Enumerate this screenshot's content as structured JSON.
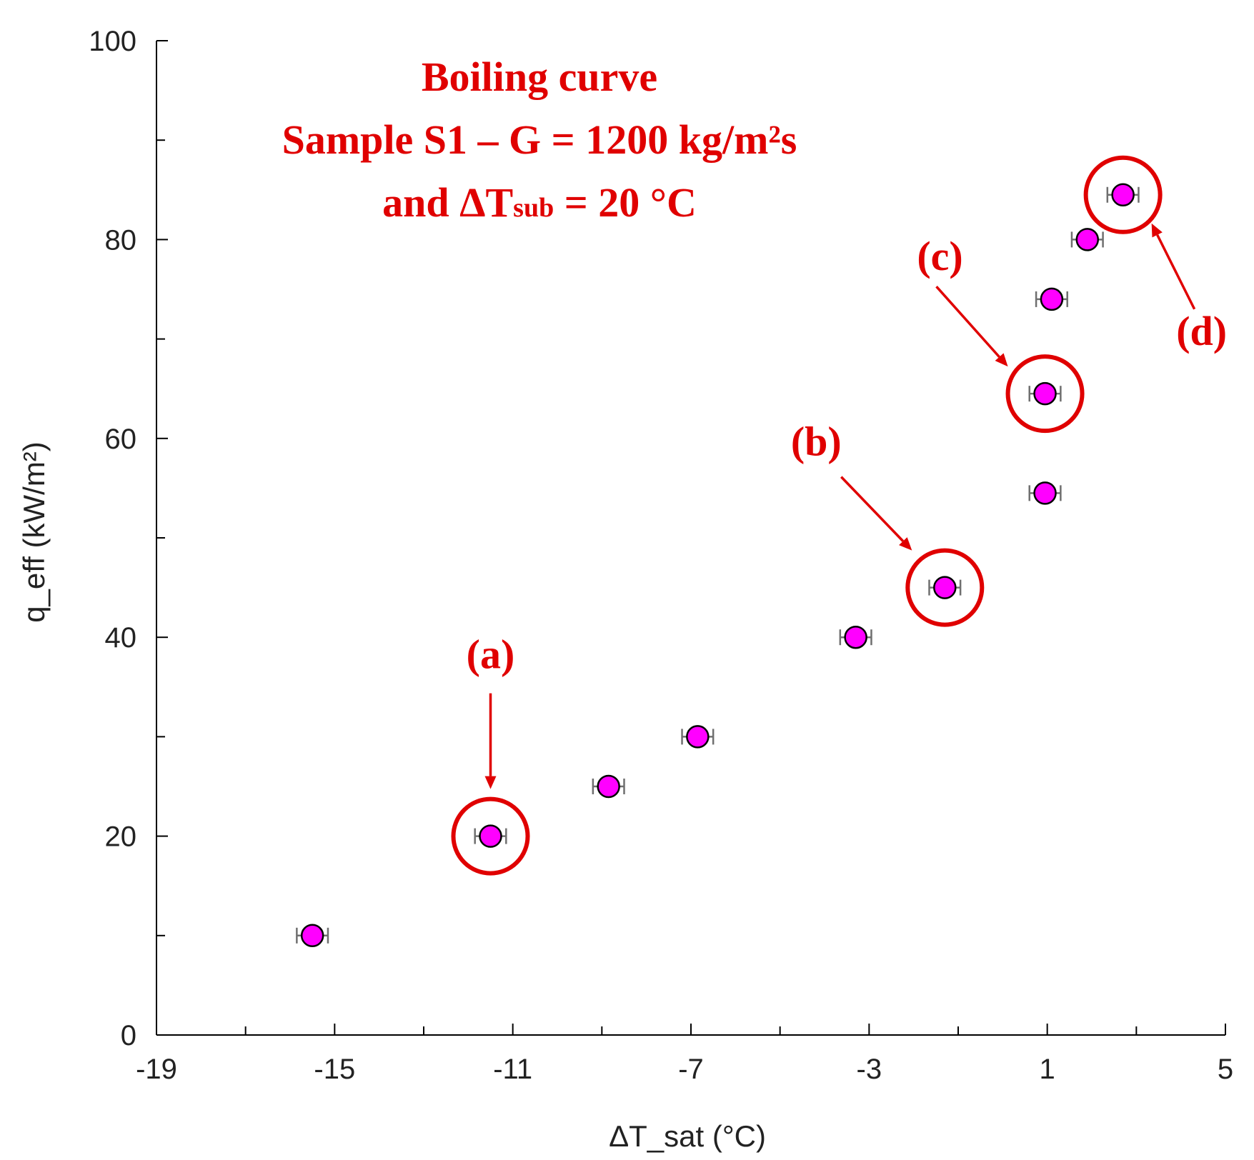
{
  "chart_data": {
    "type": "scatter",
    "title_lines": [
      "Boiling curve",
      "Sample S1 – G = 1200 kg/m²s",
      "and ΔT",
      "sub",
      " = 20 °C"
    ],
    "xlabel": "ΔT_sat (°C)",
    "ylabel": "q_eff (kW/m²)",
    "xlim": [
      -19,
      5
    ],
    "ylim": [
      0,
      100
    ],
    "xticks_major": [
      -19,
      -15,
      -11,
      -7,
      -3,
      1,
      5
    ],
    "xticks_minor": [
      -17,
      -13,
      -9,
      -5,
      -1,
      3
    ],
    "yticks_major": [
      0,
      20,
      40,
      60,
      80,
      100
    ],
    "yticks_minor": [
      10,
      30,
      50,
      70,
      90
    ],
    "xtick_labels": [
      "-19",
      "-15",
      "-11",
      "-7",
      "-3",
      "1",
      "5"
    ],
    "ytick_labels": [
      "0",
      "20",
      "40",
      "60",
      "80",
      "100"
    ],
    "x_error": 0.35,
    "series": [
      {
        "name": "S1",
        "x": [
          -15.5,
          -11.5,
          -8.85,
          -6.85,
          -3.3,
          -1.3,
          0.95,
          0.95,
          1.1,
          1.9,
          2.7
        ],
        "y": [
          10,
          20,
          25,
          30,
          40,
          45,
          54.5,
          64.5,
          74,
          80,
          84.5
        ]
      }
    ],
    "annotations": [
      {
        "label": "(a)",
        "point_index": 1
      },
      {
        "label": "(b)",
        "point_index": 5
      },
      {
        "label": "(c)",
        "point_index": 7
      },
      {
        "label": "(d)",
        "point_index": 10
      }
    ]
  }
}
